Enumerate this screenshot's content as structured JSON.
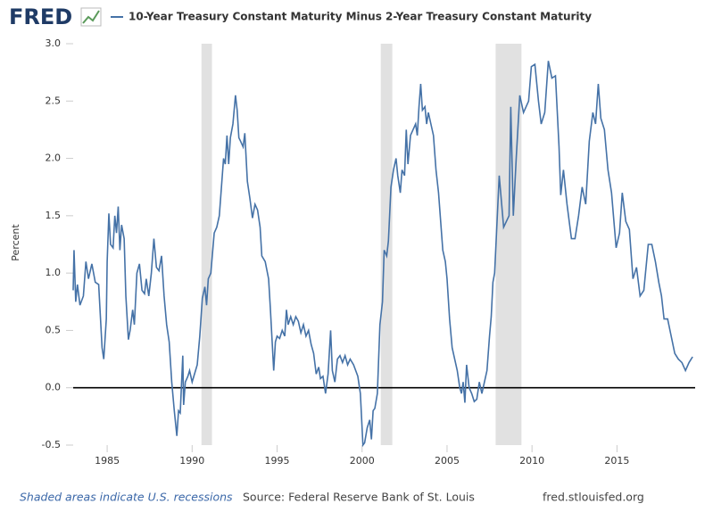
{
  "chart_data": {
    "type": "line",
    "logo": "FRED",
    "ylabel": "Percent",
    "note": "Shaded areas indicate U.S. recessions",
    "source": "Source: Federal Reserve Bank of St. Louis",
    "site": "fred.stlouisfed.org",
    "xlim": [
      1983,
      2019.6
    ],
    "xticks": [
      1985,
      1990,
      1995,
      2000,
      2005,
      2010,
      2015
    ],
    "ylim": [
      -0.5,
      3.0
    ],
    "yticks": [
      {
        "value": 3.0,
        "label": "3.0"
      },
      2.5,
      {
        "value": 2.0,
        "label": "2.0"
      },
      1.5,
      {
        "value": 1.0,
        "label": "1.0"
      },
      0.5,
      {
        "value": 0.0,
        "label": "0.0"
      },
      -0.5
    ],
    "hline": 0,
    "recessions": [
      [
        1990.55,
        1991.17
      ],
      [
        2001.1,
        2001.78
      ],
      [
        2007.86,
        2009.38
      ]
    ],
    "x": [
      1983.0,
      1983.05,
      1983.15,
      1983.25,
      1983.4,
      1983.6,
      1983.75,
      1983.9,
      1984.1,
      1984.3,
      1984.5,
      1984.7,
      1984.8,
      1984.95,
      1985.0,
      1985.1,
      1985.2,
      1985.35,
      1985.45,
      1985.55,
      1985.65,
      1985.75,
      1985.85,
      1986.0,
      1986.1,
      1986.25,
      1986.35,
      1986.5,
      1986.6,
      1986.75,
      1986.9,
      1987.05,
      1987.2,
      1987.3,
      1987.45,
      1987.6,
      1987.75,
      1987.9,
      1988.05,
      1988.2,
      1988.35,
      1988.5,
      1988.65,
      1988.8,
      1988.95,
      1989.1,
      1989.2,
      1989.3,
      1989.45,
      1989.5,
      1989.6,
      1989.75,
      1989.85,
      1990.0,
      1990.1,
      1990.3,
      1990.45,
      1990.6,
      1990.75,
      1990.85,
      1990.95,
      1991.1,
      1991.3,
      1991.45,
      1991.6,
      1991.75,
      1991.85,
      1991.95,
      1992.05,
      1992.15,
      1992.25,
      1992.4,
      1992.55,
      1992.65,
      1992.75,
      1992.85,
      1993.0,
      1993.1,
      1993.25,
      1993.4,
      1993.55,
      1993.7,
      1993.85,
      1994.0,
      1994.1,
      1994.3,
      1994.5,
      1994.6,
      1994.8,
      1994.9,
      1995.0,
      1995.15,
      1995.3,
      1995.45,
      1995.55,
      1995.65,
      1995.8,
      1995.95,
      1996.1,
      1996.25,
      1996.4,
      1996.55,
      1996.7,
      1996.85,
      1997.0,
      1997.15,
      1997.3,
      1997.45,
      1997.55,
      1997.7,
      1997.85,
      1998.0,
      1998.15,
      1998.25,
      1998.4,
      1998.55,
      1998.7,
      1998.85,
      1999.0,
      1999.15,
      1999.3,
      1999.5,
      1999.75,
      1999.9,
      2000.05,
      2000.15,
      2000.3,
      2000.45,
      2000.55,
      2000.65,
      2000.75,
      2000.9,
      2001.05,
      2001.2,
      2001.3,
      2001.45,
      2001.55,
      2001.7,
      2001.85,
      2002.0,
      2002.1,
      2002.25,
      2002.35,
      2002.5,
      2002.6,
      2002.7,
      2002.85,
      2003.0,
      2003.15,
      2003.25,
      2003.35,
      2003.45,
      2003.55,
      2003.7,
      2003.8,
      2003.9,
      2004.05,
      2004.2,
      2004.35,
      2004.5,
      2004.6,
      2004.75,
      2004.9,
      2005.0,
      2005.15,
      2005.3,
      2005.45,
      2005.6,
      2005.75,
      2005.85,
      2005.95,
      2006.05,
      2006.15,
      2006.3,
      2006.45,
      2006.6,
      2006.75,
      2006.9,
      2007.05,
      2007.2,
      2007.35,
      2007.5,
      2007.6,
      2007.7,
      2007.8,
      2008.07,
      2008.33,
      2008.65,
      2008.75,
      2008.9,
      2009.07,
      2009.28,
      2009.5,
      2009.8,
      2009.96,
      2010.17,
      2010.38,
      2010.54,
      2010.75,
      2010.96,
      2011.17,
      2011.38,
      2011.59,
      2011.69,
      2011.85,
      2012.06,
      2012.32,
      2012.53,
      2012.74,
      2012.95,
      2013.16,
      2013.37,
      2013.58,
      2013.74,
      2013.9,
      2014.05,
      2014.26,
      2014.47,
      2014.68,
      2014.95,
      2015.15,
      2015.31,
      2015.52,
      2015.73,
      2015.94,
      2016.15,
      2016.36,
      2016.58,
      2016.84,
      2017.05,
      2017.26,
      2017.46,
      2017.62,
      2017.77,
      2017.98,
      2018.19,
      2018.4,
      2018.61,
      2018.82,
      2019.03,
      2019.24,
      2019.45
    ],
    "series": [
      {
        "name": "10-Year Treasury Constant Maturity Minus 2-Year Treasury Constant Maturity",
        "color": "#4572a7",
        "values": [
          0.85,
          1.2,
          0.75,
          0.9,
          0.72,
          0.8,
          1.1,
          0.95,
          1.08,
          0.92,
          0.9,
          0.35,
          0.25,
          0.6,
          1.1,
          1.52,
          1.25,
          1.22,
          1.5,
          1.35,
          1.58,
          1.2,
          1.42,
          1.3,
          0.8,
          0.42,
          0.5,
          0.68,
          0.55,
          1.0,
          1.08,
          0.85,
          0.82,
          0.95,
          0.8,
          1.0,
          1.3,
          1.05,
          1.02,
          1.15,
          0.8,
          0.55,
          0.4,
          0.05,
          -0.2,
          -0.42,
          -0.2,
          -0.22,
          0.28,
          -0.15,
          0.05,
          0.1,
          0.15,
          0.05,
          0.1,
          0.2,
          0.45,
          0.78,
          0.88,
          0.72,
          0.95,
          1.0,
          1.35,
          1.4,
          1.5,
          1.8,
          2.0,
          1.95,
          2.2,
          1.95,
          2.18,
          2.3,
          2.55,
          2.42,
          2.18,
          2.15,
          2.1,
          2.22,
          1.8,
          1.65,
          1.48,
          1.6,
          1.55,
          1.4,
          1.15,
          1.1,
          0.95,
          0.7,
          0.15,
          0.4,
          0.45,
          0.43,
          0.5,
          0.45,
          0.68,
          0.55,
          0.62,
          0.55,
          0.62,
          0.58,
          0.48,
          0.55,
          0.45,
          0.5,
          0.38,
          0.3,
          0.12,
          0.18,
          0.08,
          0.1,
          -0.05,
          0.12,
          0.5,
          0.15,
          0.05,
          0.25,
          0.28,
          0.22,
          0.28,
          0.2,
          0.25,
          0.2,
          0.1,
          -0.05,
          -0.5,
          -0.48,
          -0.35,
          -0.28,
          -0.45,
          -0.2,
          -0.18,
          -0.05,
          0.55,
          0.75,
          1.2,
          1.15,
          1.28,
          1.75,
          1.9,
          2.0,
          1.85,
          1.7,
          1.9,
          1.85,
          2.25,
          1.95,
          2.2,
          2.25,
          2.3,
          2.2,
          2.45,
          2.65,
          2.42,
          2.45,
          2.3,
          2.4,
          2.3,
          2.2,
          1.9,
          1.7,
          1.5,
          1.2,
          1.1,
          0.95,
          0.6,
          0.35,
          0.25,
          0.15,
          0.0,
          -0.05,
          0.05,
          -0.13,
          0.2,
          0.0,
          -0.05,
          -0.12,
          -0.1,
          0.05,
          -0.05,
          0.05,
          0.15,
          0.45,
          0.62,
          0.92,
          1.0,
          1.85,
          1.4,
          1.5,
          2.45,
          1.5,
          2.0,
          2.55,
          2.4,
          2.5,
          2.8,
          2.82,
          2.5,
          2.3,
          2.4,
          2.85,
          2.7,
          2.72,
          2.1,
          1.68,
          1.9,
          1.6,
          1.3,
          1.3,
          1.5,
          1.75,
          1.6,
          2.15,
          2.4,
          2.3,
          2.65,
          2.35,
          2.25,
          1.9,
          1.7,
          1.22,
          1.35,
          1.7,
          1.45,
          1.38,
          0.95,
          1.05,
          0.8,
          0.85,
          1.25,
          1.25,
          1.1,
          0.92,
          0.8,
          0.6,
          0.6,
          0.45,
          0.3,
          0.25,
          0.22,
          0.15,
          0.22,
          0.27
        ]
      }
    ]
  }
}
